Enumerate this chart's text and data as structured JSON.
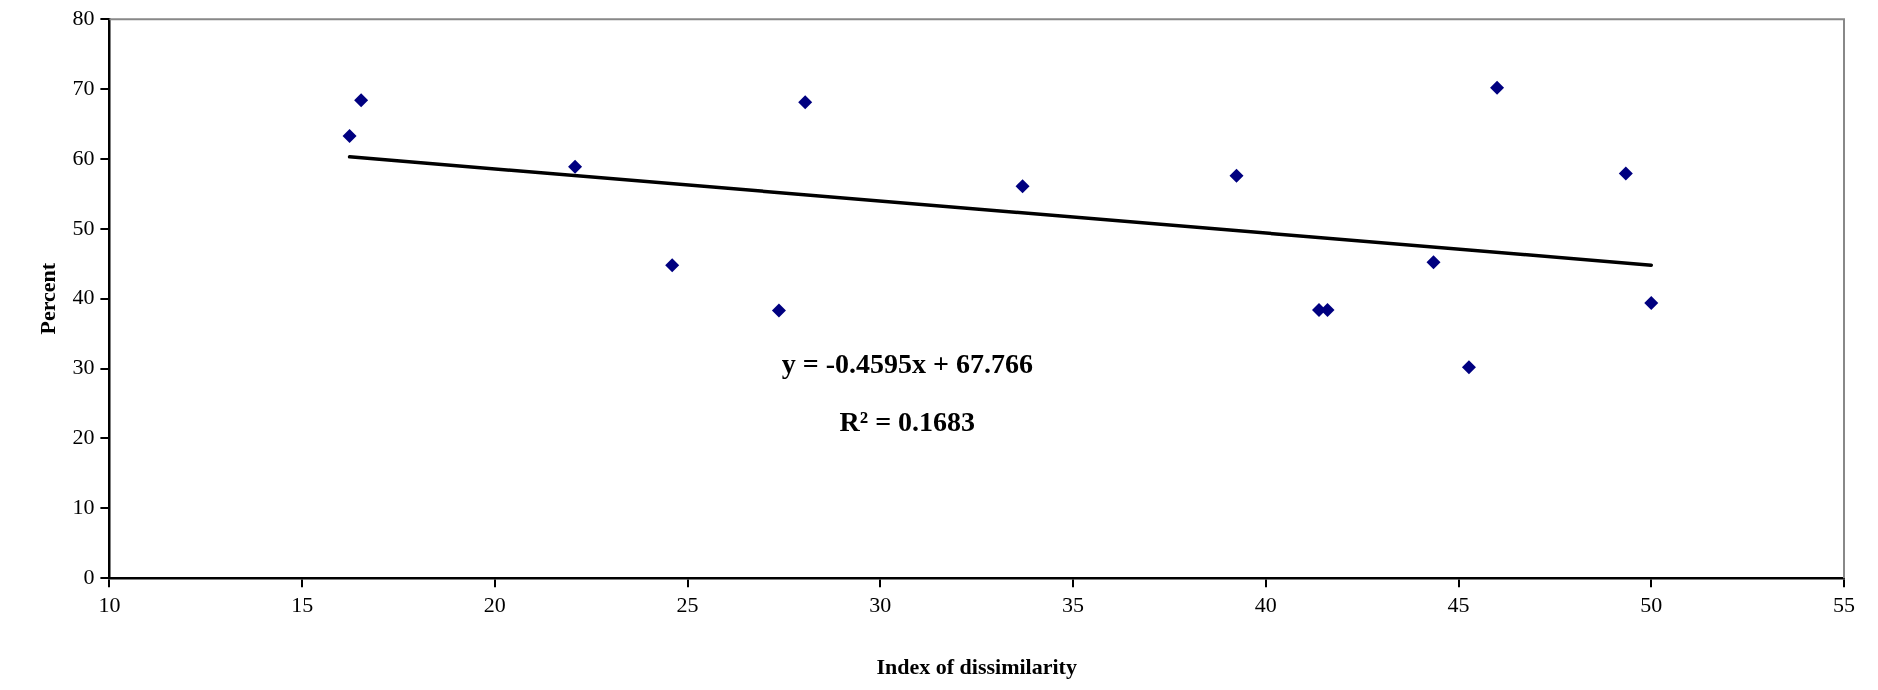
{
  "chart_data": {
    "type": "scatter",
    "xlabel": "Index of dissimilarity",
    "ylabel": "Percent",
    "series": [
      {
        "type": "scatter",
        "color": "#000080",
        "marker": "diamond",
        "x": [
          16.23,
          16.53,
          22.08,
          24.6,
          27.37,
          28.05,
          33.69,
          39.24,
          41.38,
          41.6,
          44.35,
          45.27,
          46.0,
          49.34,
          50.0
        ],
        "values": [
          63.3,
          68.4,
          58.9,
          44.8,
          38.3,
          68.1,
          56.1,
          57.6,
          38.4,
          38.4,
          45.2,
          30.2,
          70.2,
          57.9,
          39.4
        ]
      },
      {
        "type": "line",
        "color": "#000000",
        "marker": "none",
        "line_style": "solid",
        "x": [
          16.23,
          50.0
        ],
        "values": [
          60.3,
          44.8
        ]
      }
    ],
    "annotations": [
      "y = -0.4595x + 67.766",
      "R² = 0.1683"
    ],
    "xlim": [
      10,
      55
    ],
    "xticks": [
      10,
      15,
      20,
      25,
      30,
      35,
      40,
      45,
      50,
      55
    ],
    "ylim": [
      0,
      80
    ],
    "yticks": [
      0,
      10,
      20,
      30,
      40,
      50,
      60,
      70,
      80
    ],
    "grid": false,
    "legend": false
  }
}
